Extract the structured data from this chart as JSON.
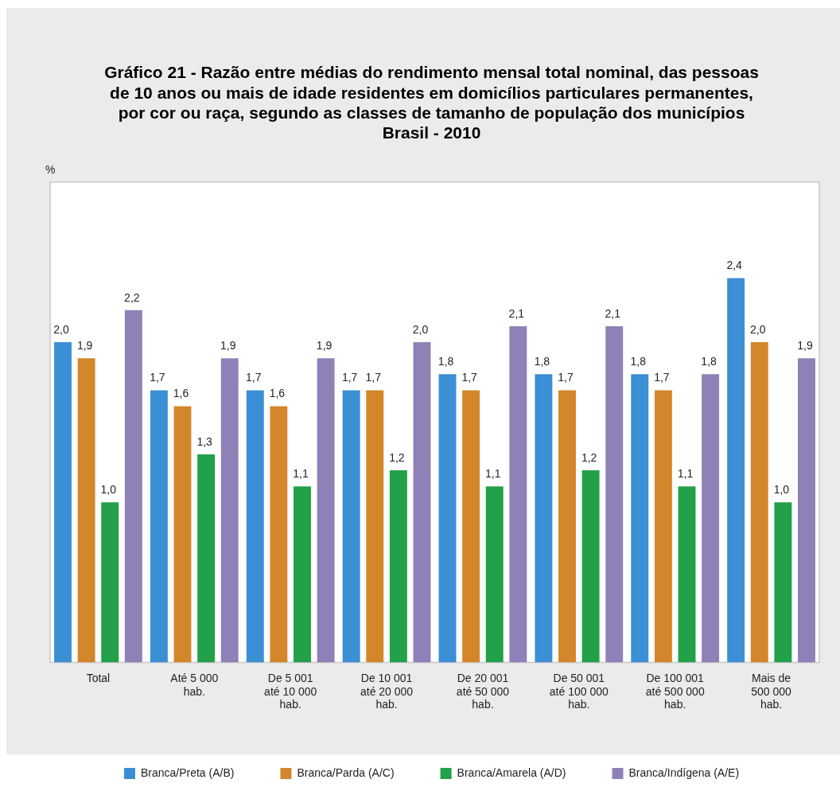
{
  "chart_data": {
    "type": "bar",
    "title": "Gráfico 21 - Razão entre médias do rendimento mensal total nominal, das pessoas\nde 10 anos ou mais de idade residentes em domicílios particulares permanentes,\npor cor ou raça, segundo as classes de tamanho de população dos municípios",
    "subtitle": "Brasil - 2010",
    "annotations": [
      "%"
    ],
    "categories": [
      "Total",
      "Até 5 000 hab.",
      "De 5 001 até 10 000 hab.",
      "De 10 001 até 20 000 hab.",
      "De 20 001 até 50 000 hab.",
      "De 50 001 até 100 000 hab.",
      "De 100 001 até 500 000 hab.",
      "Mais de 500 000 hab."
    ],
    "series": [
      {
        "name": "Branca/Preta (A/B)",
        "color": "#3a8fd5",
        "values": [
          2.0,
          1.7,
          1.7,
          1.7,
          1.8,
          1.8,
          1.8,
          2.4
        ],
        "value_labels": [
          "2,0",
          "1,7",
          "1,7",
          "1,7",
          "1,8",
          "1,8",
          "1,8",
          "2,4"
        ]
      },
      {
        "name": "Branca/Parda (A/C)",
        "color": "#d4862a",
        "values": [
          1.9,
          1.6,
          1.6,
          1.7,
          1.7,
          1.7,
          1.7,
          2.0
        ],
        "value_labels": [
          "1,9",
          "1,6",
          "1,6",
          "1,7",
          "1,7",
          "1,7",
          "1,7",
          "2,0"
        ]
      },
      {
        "name": "Branca/Amarela (A/D)",
        "color": "#22a04a",
        "values": [
          1.0,
          1.3,
          1.1,
          1.2,
          1.1,
          1.2,
          1.1,
          1.0
        ],
        "value_labels": [
          "1,0",
          "1,3",
          "1,1",
          "1,2",
          "1,1",
          "1,2",
          "1,1",
          "1,0"
        ]
      },
      {
        "name": "Branca/Indígena (A/E)",
        "color": "#8e81b8",
        "values": [
          2.2,
          1.9,
          1.9,
          2.0,
          2.1,
          2.1,
          1.8,
          1.9
        ],
        "value_labels": [
          "2,2",
          "1,9",
          "1,9",
          "2,0",
          "2,1",
          "2,1",
          "1,8",
          "1,9"
        ]
      }
    ],
    "grid": false,
    "legend": "bottom",
    "tick_labels": "x"
  }
}
